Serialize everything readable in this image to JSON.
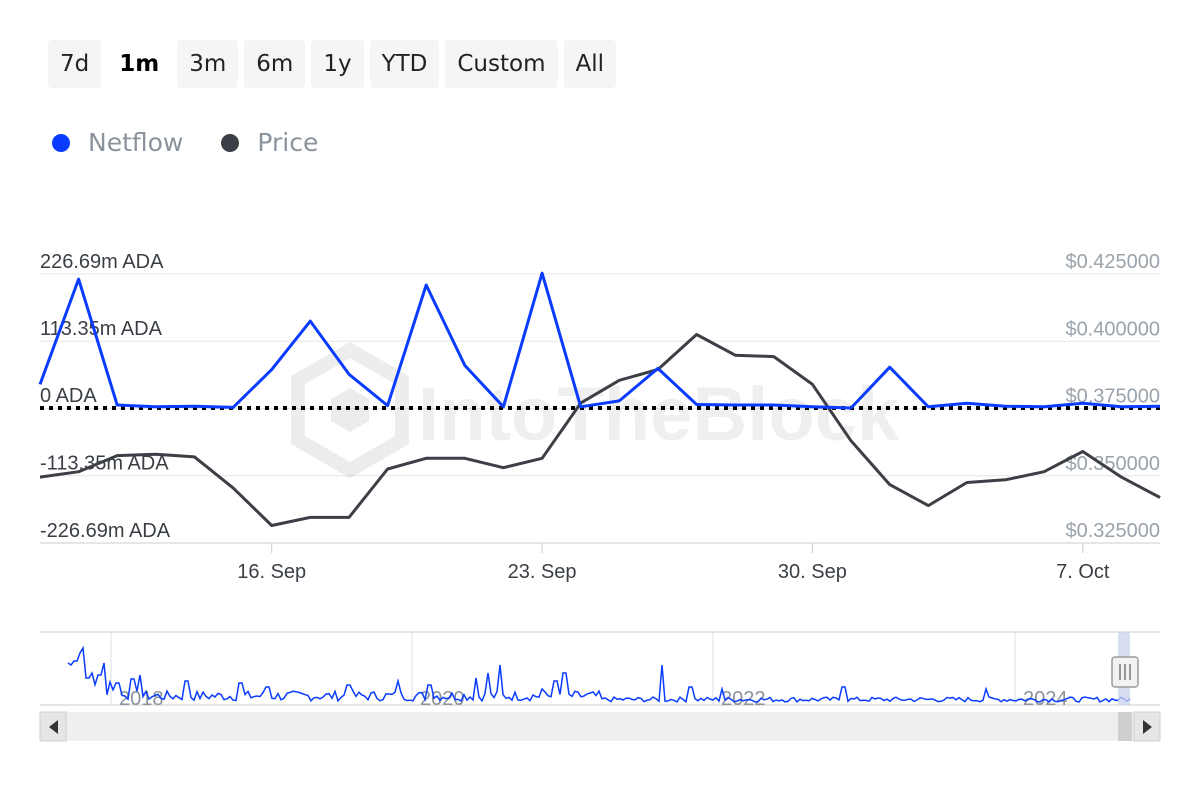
{
  "range_buttons": [
    {
      "label": "7d",
      "active": false
    },
    {
      "label": "1m",
      "active": true
    },
    {
      "label": "3m",
      "active": false
    },
    {
      "label": "6m",
      "active": false
    },
    {
      "label": "1y",
      "active": false
    },
    {
      "label": "YTD",
      "active": false
    },
    {
      "label": "Custom",
      "active": false
    },
    {
      "label": "All",
      "active": false
    }
  ],
  "legend": [
    {
      "label": "Netflow",
      "color": "#0a3cff"
    },
    {
      "label": "Price",
      "color": "#3c3f45"
    }
  ],
  "watermark": "IntoTheBlock",
  "chart_data": {
    "type": "line",
    "x_labels": [
      "16. Sep",
      "23. Sep",
      "30. Sep",
      "7. Oct"
    ],
    "x_label_indices": [
      6,
      13,
      20,
      27
    ],
    "y_left": {
      "ticks": [
        "226.69m ADA",
        "113.35m ADA",
        "0 ADA",
        "-113.35m ADA",
        "-226.69m ADA"
      ],
      "values": [
        226.69,
        113.35,
        0,
        -113.35,
        -226.69
      ],
      "range": [
        -226.69,
        226.69
      ]
    },
    "y_right": {
      "ticks": [
        "$0.425000",
        "$0.400000",
        "$0.375000",
        "$0.350000",
        "$0.325000"
      ],
      "values": [
        0.425,
        0.4,
        0.375,
        0.35,
        0.325
      ],
      "range": [
        0.325,
        0.425
      ]
    },
    "x": [
      "2024-09-10",
      "2024-09-11",
      "2024-09-12",
      "2024-09-13",
      "2024-09-14",
      "2024-09-15",
      "2024-09-16",
      "2024-09-17",
      "2024-09-18",
      "2024-09-19",
      "2024-09-20",
      "2024-09-21",
      "2024-09-22",
      "2024-09-23",
      "2024-09-24",
      "2024-09-25",
      "2024-09-26",
      "2024-09-27",
      "2024-09-28",
      "2024-09-29",
      "2024-09-30",
      "2024-10-01",
      "2024-10-02",
      "2024-10-03",
      "2024-10-04",
      "2024-10-05",
      "2024-10-06",
      "2024-10-07",
      "2024-10-08",
      "2024-10-09"
    ],
    "series": [
      {
        "name": "Netflow",
        "axis": "left",
        "color": "#0a3cff",
        "values": [
          40,
          218,
          5,
          2,
          3,
          1,
          65,
          147,
          57,
          4,
          208,
          72,
          2,
          228,
          2,
          12,
          67,
          6,
          5,
          5,
          2,
          0,
          69,
          2,
          8,
          3,
          2,
          8,
          2,
          3
        ]
      },
      {
        "name": "Price",
        "axis": "right",
        "color": "#3c3f45",
        "values": [
          0.3495,
          0.3515,
          0.3575,
          0.358,
          0.357,
          0.3455,
          0.3315,
          0.3345,
          0.3345,
          0.3525,
          0.3565,
          0.3565,
          0.353,
          0.3565,
          0.377,
          0.3855,
          0.3895,
          0.4025,
          0.3948,
          0.3943,
          0.384,
          0.363,
          0.3467,
          0.3389,
          0.3475,
          0.3485,
          0.3515,
          0.359,
          0.3495,
          0.3419
        ]
      }
    ],
    "zero_line": "dotted",
    "grid": "horizontal",
    "navigator": {
      "labels": [
        "2018",
        "2020",
        "2022",
        "2024"
      ]
    }
  }
}
